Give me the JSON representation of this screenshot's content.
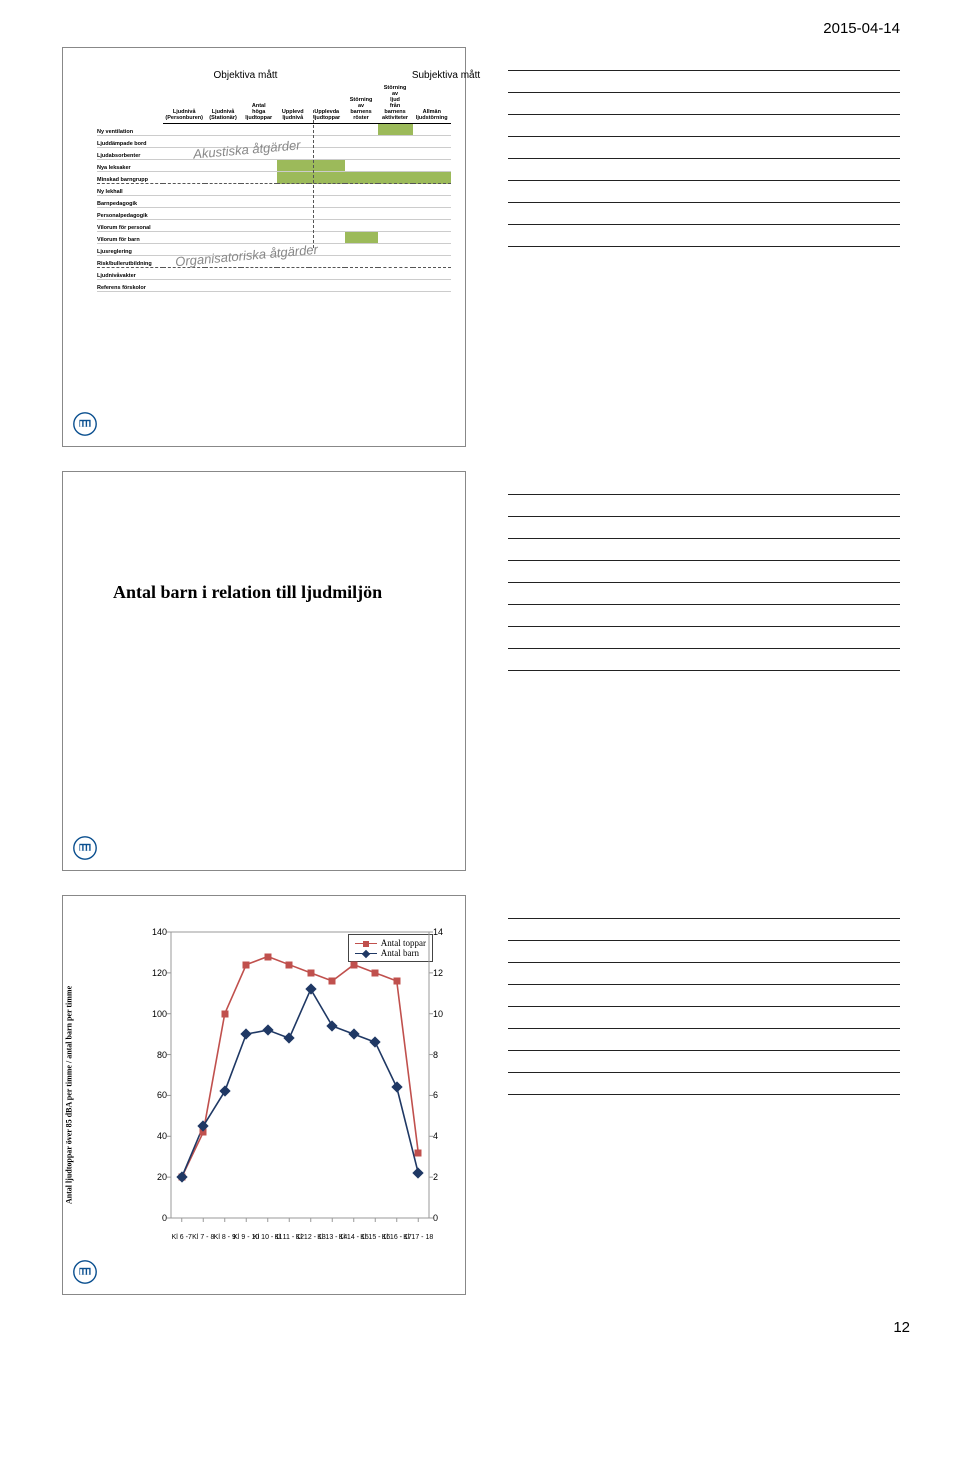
{
  "header": {
    "date": "2015-04-14"
  },
  "footer": {
    "page": "12"
  },
  "slide1": {
    "group_obj": "Objektiva mått",
    "group_subj": "Subjektiva mått",
    "overlay1": "Akustiska åtgärder",
    "overlay2": "Organisatoriska åtgärder",
    "columns": [
      "Ljudnivå (Personburen)",
      "Ljudnivå (Stationär)",
      "Antal höga ljudtoppar",
      "Upplevd ljudnivå",
      "Upplevda ljudtoppar",
      "Störning av barnens röster",
      "Störning av ljud från barnens aktiviteter",
      "Allmän ljudstörning"
    ],
    "rows": [
      {
        "label": "Ny ventilation",
        "green": [
          6
        ]
      },
      {
        "label": "Ljuddämpade bord",
        "green": []
      },
      {
        "label": "Ljudabsorbenter",
        "green": []
      },
      {
        "label": "Nya leksaker",
        "green": [
          3,
          4
        ]
      },
      {
        "label": "Minskad barngrupp",
        "green": [
          3,
          4,
          5,
          6,
          7
        ],
        "sep": true
      },
      {
        "label": "Ny lekhall",
        "green": []
      },
      {
        "label": "Barnpedagogik",
        "green": []
      },
      {
        "label": "Personalpedagogik",
        "green": []
      },
      {
        "label": "Vilorum för personal",
        "green": []
      },
      {
        "label": "Vilorum för barn",
        "green": [
          5
        ]
      },
      {
        "label": "Ljusreglering",
        "green": []
      },
      {
        "label": "Risk/bullerutbildning",
        "green": [],
        "sep": true
      },
      {
        "label": "Ljudnivåvakter",
        "green": []
      },
      {
        "label": "Referens förskolor",
        "green": []
      }
    ],
    "colors": {
      "green": "#9cba5a"
    }
  },
  "slide2": {
    "title": "Antal barn i relation till ljudmiljön"
  },
  "slide3": {
    "ylabel": "Antal ljudtoppar över 85 dBA per timme / antal barn per timme",
    "legend": {
      "a": "Antal toppar",
      "b": "Antal barn"
    },
    "colors": {
      "series_a": "#c0504d",
      "series_b": "#1f3864",
      "axis": "#999999"
    },
    "y_left": {
      "min": 0,
      "max": 140,
      "step": 20
    },
    "y_right": {
      "min": 0,
      "max": 14,
      "step": 2
    },
    "x_labels": [
      "Kl 6 -7",
      "Kl 7 - 8",
      "Kl 8 - 9",
      "Kl 9 - 10",
      "Kl 10 - 11",
      "Kl 11 - 12",
      "Kl 12 - 13",
      "Kl 13 - 14",
      "Kl 14 - 15",
      "Kl 15 - 16",
      "Kl 16 - 17",
      "Kl 17 - 18"
    ],
    "series_a_vals": [
      20,
      42,
      100,
      124,
      128,
      124,
      120,
      116,
      124,
      120,
      116,
      32
    ],
    "series_b_vals": [
      2.0,
      4.5,
      6.2,
      9.0,
      9.2,
      8.8,
      11.2,
      9.4,
      9.0,
      8.6,
      6.4,
      2.2
    ]
  }
}
